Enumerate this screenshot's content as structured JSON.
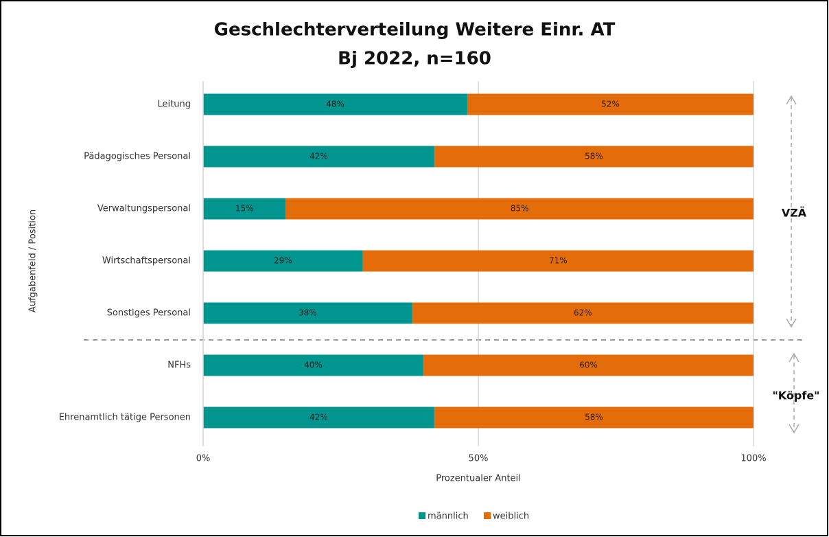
{
  "chart_data": {
    "type": "stacked_barh",
    "title": "Geschlechterverteilung Weitere Einr. AT",
    "subtitle": "Bj 2022, n=160",
    "x_label": "Prozentualer Anteil",
    "y_label": "Aufgabenfeld / Position",
    "categories": [
      "Leitung",
      "Pädagogisches Personal",
      "Verwaltungspersonal",
      "Wirtschaftspersonal",
      "Sonstiges Personal",
      "NFHs",
      "Ehrenamtlich tätige Personen"
    ],
    "series": [
      {
        "name": "männlich",
        "color": "#00968f",
        "values": [
          48,
          42,
          15,
          29,
          38,
          40,
          42
        ],
        "value_labels": [
          "48%",
          "42%",
          "15%",
          "29%",
          "38%",
          "40%",
          "42%"
        ]
      },
      {
        "name": "weiblich",
        "color": "#e46c0a",
        "values": [
          52,
          58,
          85,
          71,
          62,
          60,
          58
        ],
        "value_labels": [
          "52%",
          "58%",
          "85%",
          "71%",
          "62%",
          "60%",
          "58%"
        ]
      }
    ],
    "xlim": [
      0,
      100
    ],
    "xticks": [
      {
        "value": 0,
        "label": "0%"
      },
      {
        "value": 50,
        "label": "50%"
      },
      {
        "value": 100,
        "label": "100%"
      }
    ],
    "grid": true,
    "legend": "bottom",
    "annotations": [
      "VZÄ",
      "\"Köpfe\""
    ]
  }
}
